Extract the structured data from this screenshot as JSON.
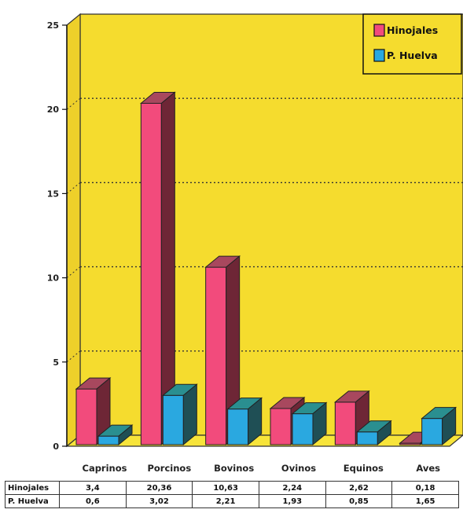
{
  "chart_data": {
    "type": "bar",
    "categories": [
      "Caprinos",
      "Porcinos",
      "Bovinos",
      "Ovinos",
      "Equinos",
      "Aves"
    ],
    "series": [
      {
        "name": "Hinojales",
        "values": [
          3.4,
          20.36,
          10.63,
          2.24,
          2.62,
          0.18
        ]
      },
      {
        "name": "P. Huelva",
        "values": [
          0.6,
          3.02,
          2.21,
          1.93,
          0.85,
          1.65
        ]
      }
    ],
    "ylim": [
      0,
      25
    ],
    "yticks": [
      "0",
      "5",
      "10",
      "15",
      "20",
      "25"
    ],
    "grid": true,
    "legend_position": "top-right",
    "table": {
      "rows": [
        {
          "label": "Hinojales",
          "values": [
            "3,4",
            "20,36",
            "10,63",
            "2,24",
            "2,62",
            "0,18"
          ]
        },
        {
          "label": "P. Huelva",
          "values": [
            "0,6",
            "3,02",
            "2,21",
            "1,93",
            "0,85",
            "1,65"
          ]
        }
      ]
    }
  },
  "colors": {
    "background": "#f5dc2e",
    "floor": "#f7e43a",
    "series": [
      {
        "front": "#f24b7c",
        "top": "#a8485e",
        "side": "#6e2636"
      },
      {
        "front": "#2aa8e0",
        "top": "#2a8f90",
        "side": "#1f4f55"
      }
    ]
  }
}
